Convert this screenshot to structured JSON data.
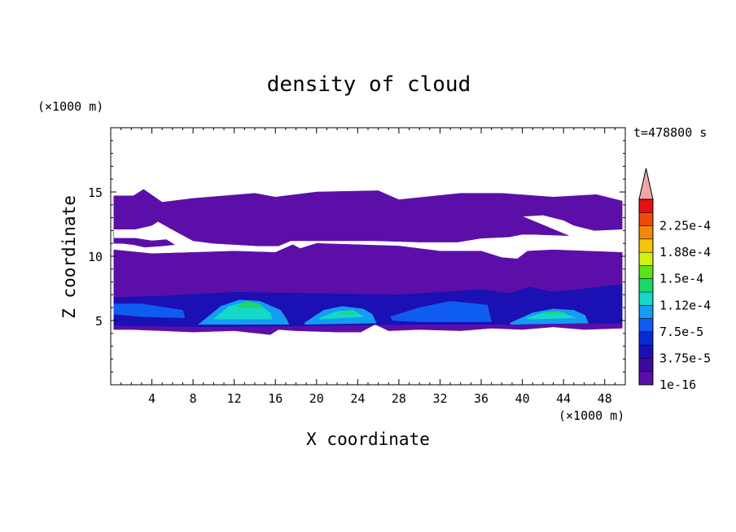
{
  "chart_data": {
    "type": "contour",
    "title": "density of cloud",
    "xlabel": "X coordinate",
    "ylabel": "Z coordinate",
    "x_unit": "(×1000 m)",
    "y_unit": "(×1000 m)",
    "time_label": "t=478800 s",
    "xlim": [
      0,
      50
    ],
    "ylim": [
      0,
      20
    ],
    "x_ticks": [
      4,
      8,
      12,
      16,
      20,
      24,
      28,
      32,
      36,
      40,
      44,
      48
    ],
    "y_ticks": [
      5,
      10,
      15
    ],
    "colorbar": {
      "levels": [
        1e-16,
        1.875e-05,
        3.75e-05,
        5.625e-05,
        7.5e-05,
        9.375e-05,
        0.0001125,
        0.00013125,
        0.00015,
        0.00016875,
        0.0001875,
        0.00020625,
        0.000225,
        0.00024375
      ],
      "tick_labels": [
        "1e-16",
        "3.75e-5",
        "7.5e-5",
        "1.12e-4",
        "1.5e-4",
        "1.88e-4",
        "2.25e-4"
      ],
      "colors": [
        "#5b0fa8",
        "#3d0aa0",
        "#1a10b4",
        "#0a2ad8",
        "#0f5cf0",
        "#139cf2",
        "#14d8c8",
        "#1bd86a",
        "#5ae21a",
        "#d2f012",
        "#f5c50a",
        "#f5880a",
        "#f04a0a",
        "#e81010"
      ],
      "extend_color": "#f0a6a6"
    },
    "regions": [
      {
        "level": 0,
        "x": [
          0.3,
          2.2,
          3.2,
          5,
          8,
          14,
          16,
          20,
          26,
          28,
          34,
          38,
          43,
          47.2,
          49.7,
          49.7,
          47,
          45,
          44,
          42,
          40,
          44.5,
          44.5,
          41,
          40,
          38.7,
          36,
          33.7,
          30,
          25.6,
          20,
          17.5,
          16.3,
          14.4,
          10,
          8,
          5.7,
          4.6,
          4,
          2.4,
          0.3,
          0.3,
          2.4,
          4,
          5.4,
          6.2,
          5,
          3.3,
          2.2,
          1.1,
          0.3
        ],
        "y": [
          14.7,
          14.7,
          15.2,
          14.2,
          14.5,
          14.9,
          14.6,
          15,
          15.1,
          14.4,
          14.9,
          14.9,
          14.6,
          14.8,
          14.3,
          12.1,
          12,
          12.4,
          12.8,
          13.2,
          13.1,
          11.6,
          11.6,
          11.7,
          11.7,
          11.5,
          11.4,
          11.1,
          11.1,
          11.2,
          11.2,
          11.2,
          10.8,
          10.8,
          11,
          11.2,
          12.2,
          12.7,
          12.4,
          12.1,
          12.1,
          11.4,
          11.4,
          11.2,
          11.3,
          10.9,
          10.8,
          10.7,
          10.9,
          11,
          11
        ]
      },
      {
        "level": 0,
        "x": [
          0.3,
          4,
          8,
          12,
          16,
          17.7,
          18.4,
          20,
          24,
          28,
          32,
          36,
          38,
          39.5,
          40.5,
          43,
          49.7,
          49.7,
          46,
          43,
          40,
          37,
          34,
          30,
          27,
          25.7,
          24.3,
          22,
          18,
          16.3,
          15.5,
          12,
          8,
          5,
          2,
          0.3
        ],
        "y": [
          10.5,
          10.2,
          10.3,
          10.4,
          10.3,
          10.9,
          10.6,
          11,
          10.9,
          10.8,
          10.4,
          10.4,
          9.9,
          9.8,
          10.4,
          10.5,
          10.3,
          4.4,
          4.3,
          4.5,
          4.3,
          4.4,
          4.2,
          4.3,
          4.2,
          4.7,
          4.1,
          4.1,
          4.2,
          4.3,
          3.9,
          4.2,
          4.1,
          4.2,
          4.3,
          4.3
        ]
      },
      {
        "level": 2,
        "x": [
          0.3,
          5,
          12,
          20,
          28,
          36,
          38.8,
          40.7,
          43,
          49.7,
          49.7,
          40,
          30,
          20,
          10,
          0.3
        ],
        "y": [
          6.8,
          6.9,
          7.2,
          7.1,
          7,
          7.4,
          7.1,
          7.6,
          7.2,
          7.8,
          4.8,
          4.7,
          4.7,
          4.6,
          4.5,
          4.6
        ]
      },
      {
        "level": 4,
        "x": [
          0.3,
          3,
          7,
          7.2,
          3,
          0.3
        ],
        "y": [
          6.3,
          6.3,
          5.8,
          5.2,
          5.3,
          5.5
        ]
      },
      {
        "level": 4,
        "x": [
          27.2,
          30,
          33,
          36.6,
          37,
          33,
          30,
          27.4
        ],
        "y": [
          5.3,
          6,
          6.5,
          6.2,
          4.9,
          4.9,
          4.9,
          5
        ]
      },
      {
        "level": 5,
        "x": [
          8.7,
          10.7,
          12.5,
          14.5,
          16.5,
          17.1,
          17.3,
          8.5
        ],
        "y": [
          4.8,
          6.1,
          6.6,
          6.5,
          5.8,
          5.1,
          4.7,
          4.7
        ]
      },
      {
        "level": 5,
        "x": [
          18.8,
          20.7,
          22.5,
          24.5,
          25.4,
          25.8,
          18.9
        ],
        "y": [
          4.8,
          5.8,
          6.1,
          5.9,
          5.5,
          4.8,
          4.7
        ]
      },
      {
        "level": 5,
        "x": [
          38.8,
          41,
          43,
          45,
          46.1,
          46.4,
          38.9
        ],
        "y": [
          4.8,
          5.6,
          5.9,
          5.8,
          5.4,
          4.8,
          4.7
        ]
      },
      {
        "level": 6,
        "x": [
          10.1,
          11.5,
          13,
          14.5,
          15.5,
          15.7,
          10
        ],
        "y": [
          5.2,
          6.1,
          6.4,
          6.2,
          5.6,
          5.1,
          5.1
        ]
      },
      {
        "level": 6,
        "x": [
          20.3,
          22,
          23.5,
          24.6,
          20.3
        ],
        "y": [
          5.2,
          5.7,
          5.8,
          5.3,
          5.1
        ]
      },
      {
        "level": 6,
        "x": [
          40.4,
          42,
          43.5,
          45.2,
          40.6
        ],
        "y": [
          5.2,
          5.6,
          5.7,
          5.2,
          5.1
        ]
      },
      {
        "level": 7,
        "x": [
          12.2,
          13.2,
          14.4,
          14.9,
          12.8
        ],
        "y": [
          6.1,
          6.5,
          6.3,
          6,
          6
        ]
      },
      {
        "level": 7,
        "x": [
          22.2,
          23.2,
          23.9,
          22.6
        ],
        "y": [
          5.6,
          5.7,
          5.5,
          5.5
        ]
      },
      {
        "level": 7,
        "x": [
          42.3,
          43.2,
          44.2,
          42.8
        ],
        "y": [
          5.6,
          5.7,
          5.6,
          5.5
        ]
      }
    ]
  }
}
